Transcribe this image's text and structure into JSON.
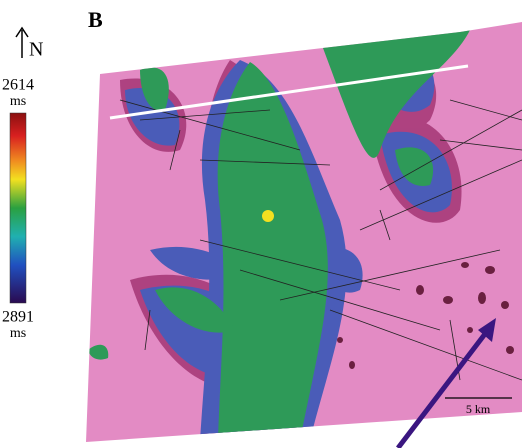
{
  "panel_label": "B",
  "north_label": "N",
  "colorbar": {
    "top_value": 2614,
    "top_unit": "ms",
    "bottom_value": 2891,
    "bottom_unit": "ms"
  },
  "scale_bar": {
    "label": "5 km"
  }
}
